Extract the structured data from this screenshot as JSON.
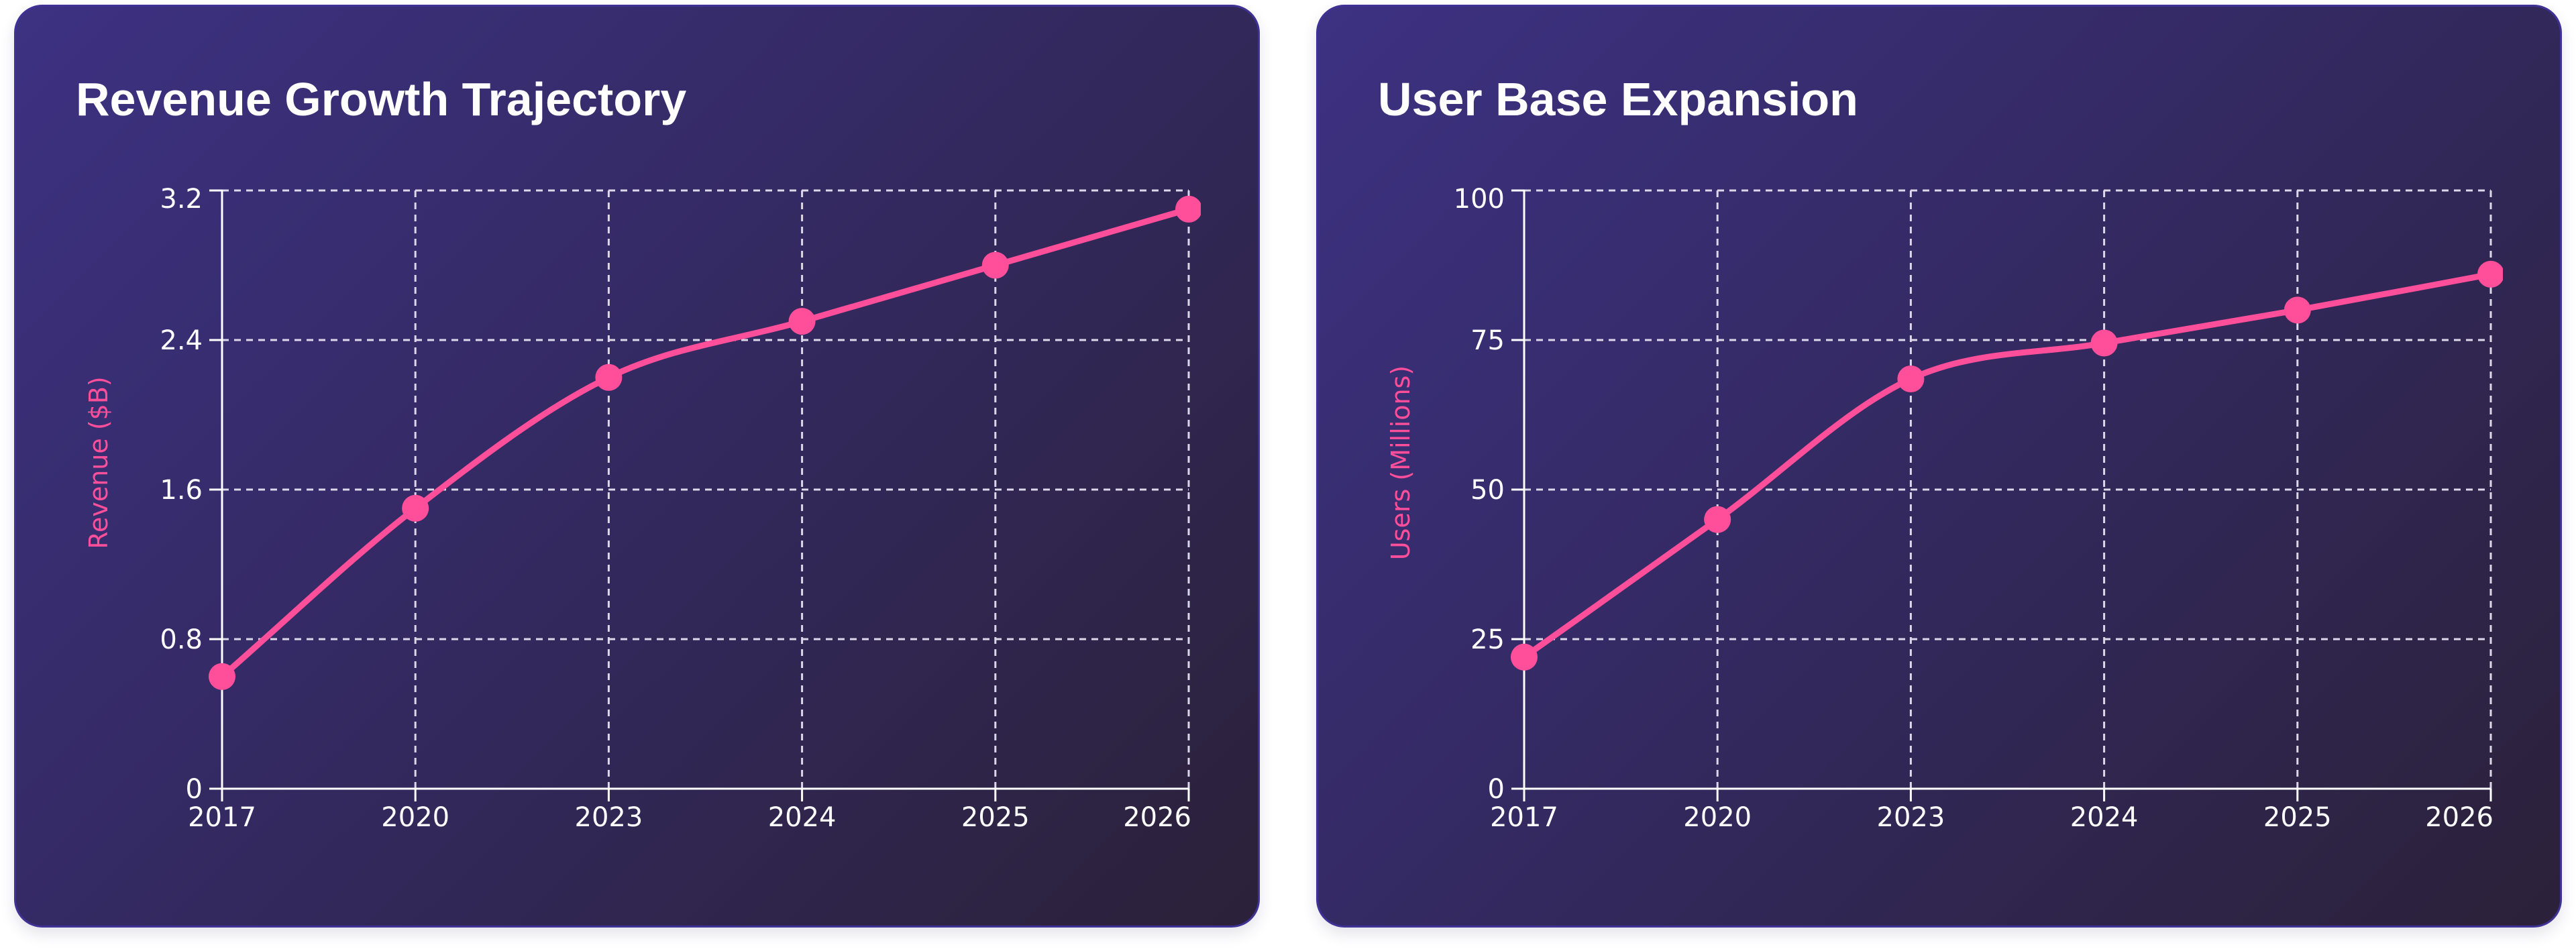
{
  "theme": {
    "line_color": "#ff4f9a",
    "axis_label_color": "#ff4f9a",
    "grid_color": "#dcd8ea",
    "axis_color": "#ffffff",
    "card_border": "#3f3296",
    "card_gradient_start": "#3d3182",
    "card_gradient_end": "#2b2139"
  },
  "cards": [
    {
      "title": "Revenue Growth Trajectory"
    },
    {
      "title": "User Base Expansion"
    }
  ],
  "chart_data": [
    {
      "type": "line",
      "title": "Revenue Growth Trajectory",
      "xlabel": "",
      "ylabel": "Revenue ($B)",
      "categories": [
        "2017",
        "2020",
        "2023",
        "2024",
        "2025",
        "2026"
      ],
      "series": [
        {
          "name": "Revenue",
          "values": [
            0.6,
            1.5,
            2.2,
            2.5,
            2.8,
            3.1
          ]
        }
      ],
      "ylim": [
        0,
        3.2
      ],
      "yticks": [
        0,
        0.8,
        1.6,
        2.4,
        3.2
      ],
      "ytick_labels": [
        "0",
        "0.8",
        "1.6",
        "2.4",
        "3.2"
      ],
      "grid": true,
      "grid_style": "dashed",
      "curve": "smooth",
      "markers": true,
      "legend": "none"
    },
    {
      "type": "line",
      "title": "User Base Expansion",
      "xlabel": "",
      "ylabel": "Users (Millions)",
      "categories": [
        "2017",
        "2020",
        "2023",
        "2024",
        "2025",
        "2026"
      ],
      "series": [
        {
          "name": "Users",
          "values": [
            22,
            45,
            68.5,
            74.5,
            80,
            86
          ]
        }
      ],
      "ylim": [
        0,
        100
      ],
      "yticks": [
        0,
        25,
        50,
        75,
        100
      ],
      "ytick_labels": [
        "0",
        "25",
        "50",
        "75",
        "100"
      ],
      "grid": true,
      "grid_style": "dashed",
      "curve": "smooth",
      "markers": true,
      "legend": "none"
    }
  ]
}
